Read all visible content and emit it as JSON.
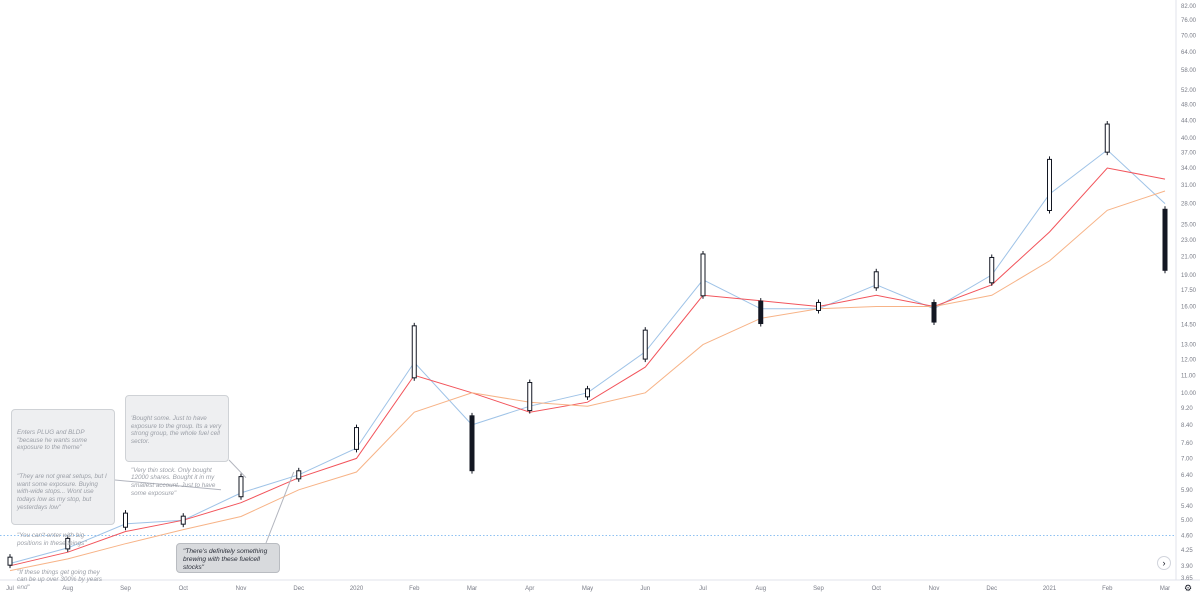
{
  "chart_data": {
    "type": "candlestick",
    "y_scale": "log",
    "ylim": [
      3.65,
      83
    ],
    "y_ticks": [
      "82.00",
      "76.00",
      "70.00",
      "64.00",
      "58.00",
      "52.00",
      "48.00",
      "44.00",
      "40.00",
      "37.00",
      "34.00",
      "31.00",
      "28.00",
      "25.00",
      "23.00",
      "21.00",
      "19.00",
      "17.50",
      "16.00",
      "14.50",
      "13.00",
      "12.00",
      "11.00",
      "10.00",
      "9.20",
      "8.40",
      "7.60",
      "7.00",
      "6.40",
      "5.90",
      "5.40",
      "5.00",
      "4.60",
      "4.25",
      "3.90",
      "3.65"
    ],
    "x_ticks": [
      "Jul",
      "Aug",
      "Sep",
      "Oct",
      "Nov",
      "Dec",
      "2020",
      "Feb",
      "Mar",
      "Apr",
      "May",
      "Jun",
      "Jul",
      "Aug",
      "Sep",
      "Oct",
      "Nov",
      "Dec",
      "2021",
      "Feb",
      "Mar"
    ],
    "horizontal_line": 4.6,
    "series": [
      {
        "kind": "price",
        "color": "#131722",
        "x": [
          "Jul",
          "Aug",
          "Sep",
          "Oct",
          "Nov",
          "Dec",
          "2020",
          "Feb",
          "Mar",
          "Apr",
          "May",
          "Jun",
          "Jul",
          "Aug",
          "Sep",
          "Oct",
          "Nov",
          "Dec",
          "2021",
          "Feb",
          "Mar"
        ],
        "values": [
          4.0,
          4.4,
          5.0,
          5.0,
          6.0,
          6.4,
          7.8,
          12.5,
          7.6,
          9.8,
          10.0,
          13.0,
          19.0,
          15.5,
          16.0,
          18.5,
          15.5,
          19.5,
          31.0,
          40.0,
          23.0
        ]
      },
      {
        "kind": "ma",
        "color": "#9fc3e7",
        "values": [
          3.95,
          4.3,
          4.9,
          5.0,
          5.8,
          6.4,
          7.4,
          11.8,
          8.4,
          9.3,
          10.0,
          12.5,
          18.5,
          15.8,
          15.8,
          18.0,
          15.8,
          19.0,
          29.5,
          37.5,
          28.0
        ]
      },
      {
        "kind": "ma",
        "color": "#f2545b",
        "values": [
          3.9,
          4.2,
          4.7,
          5.0,
          5.5,
          6.3,
          7.0,
          11.0,
          10.0,
          9.0,
          9.5,
          11.5,
          17.0,
          16.5,
          16.0,
          17.0,
          16.0,
          18.0,
          24.0,
          34.0,
          32.0
        ]
      },
      {
        "kind": "ma",
        "color": "#f7b387",
        "values": [
          3.8,
          4.05,
          4.4,
          4.75,
          5.1,
          5.9,
          6.5,
          9.0,
          10.0,
          9.5,
          9.3,
          10.0,
          13.0,
          15.0,
          15.8,
          16.0,
          16.0,
          17.0,
          20.5,
          27.0,
          30.0
        ]
      }
    ],
    "annotations": [
      {
        "id": "enters",
        "lines": [
          "Enters PLUG and BLDP \"because he wants some exposure to the theme\"",
          "\"They are not great setups, but I want some exposure. Buying with-wide stops... Wont use todays low as my stop, but yesterdays low\"",
          "\"You can't enter with big positions in these things\"",
          "\"If these things get going they can be up over 300% by years end\""
        ]
      },
      {
        "id": "bought",
        "lines": [
          "'Bought some. Just to have exposure to the group. Its a very strong group, the whole fuel cell sector.",
          "\"Very thin stock. Only bought 12000 shares. Bought it in my smallest account. Just to have some exposure\""
        ]
      },
      {
        "id": "brewing",
        "lines": [
          "\"There's definitely something brewing with these fuelcell stocks\""
        ]
      }
    ]
  },
  "colors": {
    "up": "#ffffff",
    "down": "#131722",
    "grid_line": "#8ec1f2"
  },
  "ui": {
    "scroll_icon": "chevron-right-icon",
    "settings_icon": "gear-icon"
  }
}
